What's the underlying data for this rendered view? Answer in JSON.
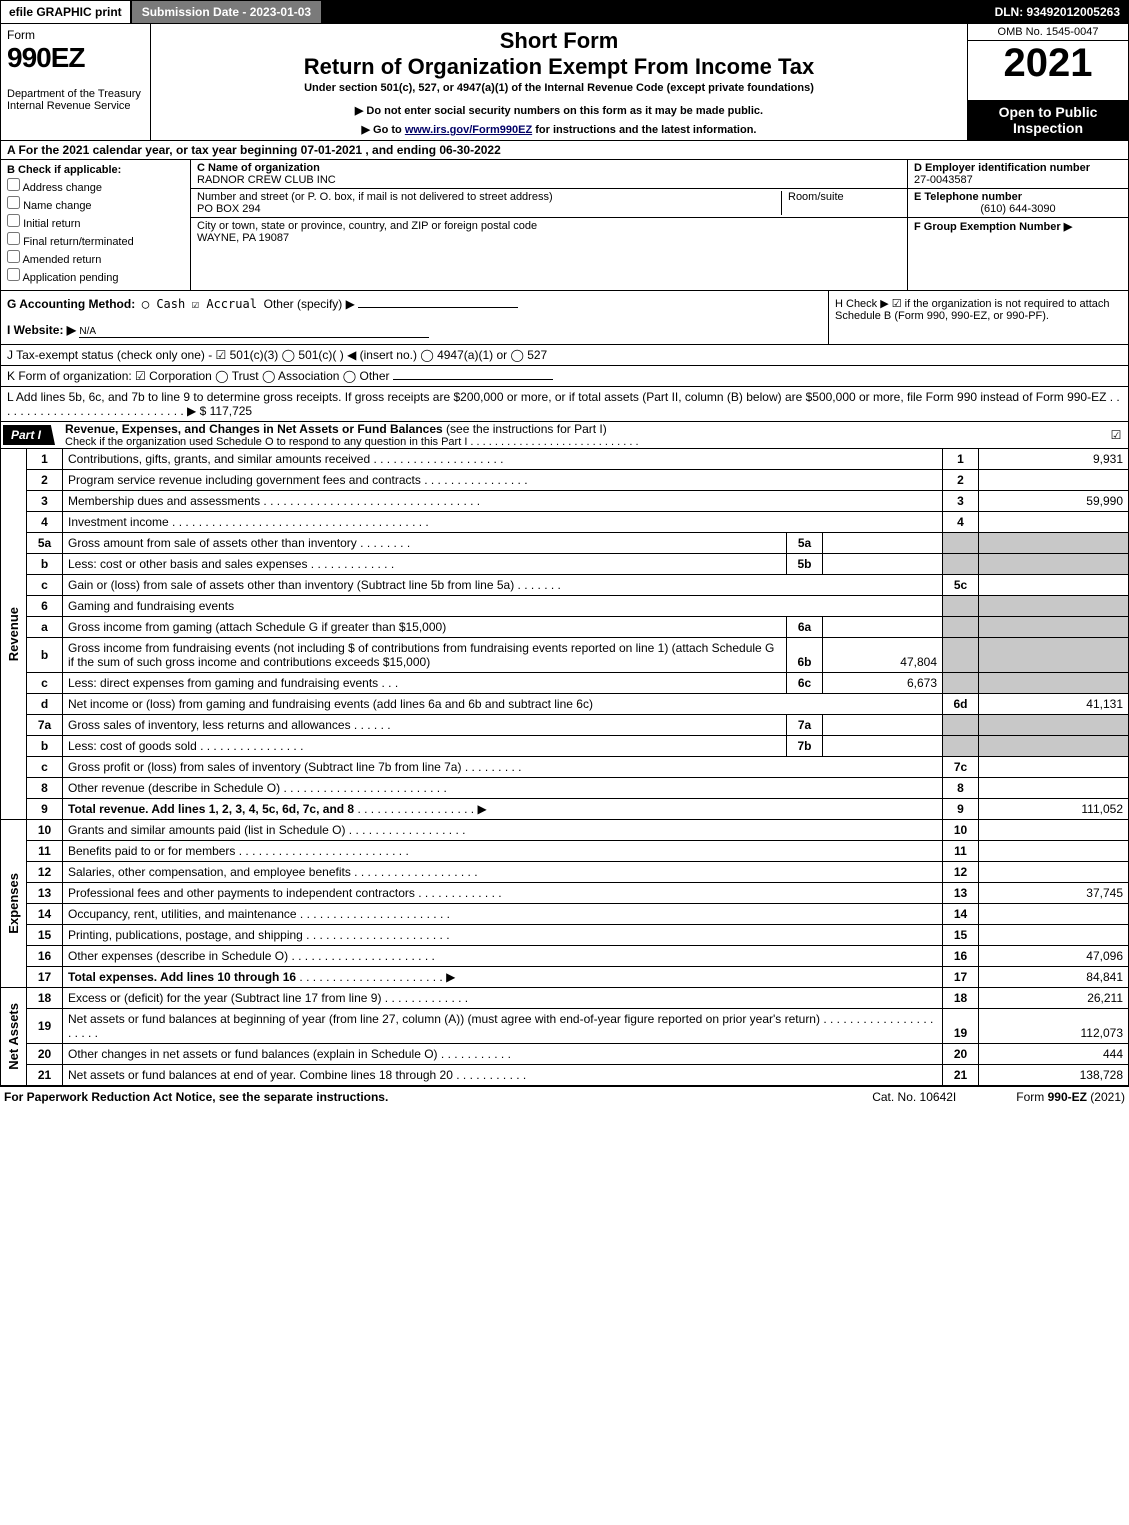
{
  "topbar": {
    "efile": "efile GRAPHIC print",
    "submission": "Submission Date - 2023-01-03",
    "dln": "DLN: 93492012005263"
  },
  "header": {
    "form_word": "Form",
    "form_number": "990EZ",
    "dept": "Department of the Treasury\nInternal Revenue Service",
    "short_form": "Short Form",
    "return_title": "Return of Organization Exempt From Income Tax",
    "under": "Under section 501(c), 527, or 4947(a)(1) of the Internal Revenue Code (except private foundations)",
    "note1": "▶ Do not enter social security numbers on this form as it may be made public.",
    "note2_pre": "▶ Go to ",
    "note2_link": "www.irs.gov/Form990EZ",
    "note2_post": " for instructions and the latest information.",
    "omb": "OMB No. 1545-0047",
    "year": "2021",
    "open": "Open to Public Inspection"
  },
  "lineA": "A  For the 2021 calendar year, or tax year beginning 07-01-2021 , and ending 06-30-2022",
  "boxB": {
    "hdr": "B  Check if applicable:",
    "items": [
      "Address change",
      "Name change",
      "Initial return",
      "Final return/terminated",
      "Amended return",
      "Application pending"
    ]
  },
  "boxC": {
    "name_lbl": "C Name of organization",
    "name": "RADNOR CREW CLUB INC",
    "street_lbl": "Number and street (or P. O. box, if mail is not delivered to street address)",
    "street": "PO BOX 294",
    "room_lbl": "Room/suite",
    "city_lbl": "City or town, state or province, country, and ZIP or foreign postal code",
    "city": "WAYNE, PA  19087"
  },
  "boxD": {
    "ein_lbl": "D Employer identification number",
    "ein": "27-0043587",
    "tel_lbl": "E Telephone number",
    "tel": "(610) 644-3090",
    "grp_lbl": "F Group Exemption Number   ▶"
  },
  "lineG": {
    "lbl": "G Accounting Method:",
    "cash": "Cash",
    "accrual": "Accrual",
    "other": "Other (specify) ▶"
  },
  "lineH": "H  Check ▶ ☑ if the organization is not required to attach Schedule B (Form 990, 990-EZ, or 990-PF).",
  "lineI": {
    "lbl": "I Website: ▶",
    "val": "N/A"
  },
  "lineJ": "J Tax-exempt status (check only one) - ☑ 501(c)(3)  ◯ 501(c)(  ) ◀ (insert no.)  ◯ 4947(a)(1) or  ◯ 527",
  "lineK": "K Form of organization:   ☑ Corporation   ◯ Trust   ◯ Association   ◯ Other",
  "lineL": {
    "text": "L Add lines 5b, 6c, and 7b to line 9 to determine gross receipts. If gross receipts are $200,000 or more, or if total assets (Part II, column (B) below) are $500,000 or more, file Form 990 instead of Form 990-EZ  .  .  .  .  .  .  .  .  .  .  .  .  .  .  .  .  .  .  .  .  .  .  .  .  .  .  .  .  .  ▶",
    "amount": "$ 117,725"
  },
  "part1": {
    "badge": "Part I",
    "title": "Revenue, Expenses, and Changes in Net Assets or Fund Balances",
    "sub": " (see the instructions for Part I)",
    "check_line": "Check if the organization used Schedule O to respond to any question in this Part I .  .  .  .  .  .  .  .  .  .  .  .  .  .  .  .  .  .  .  .  .  .  .  .  .  .  .  ."
  },
  "sections": {
    "revenue_label": "Revenue",
    "expenses_label": "Expenses",
    "netassets_label": "Net Assets"
  },
  "rows": {
    "r1": {
      "ln": "1",
      "desc": "Contributions, gifts, grants, and similar amounts received",
      "num": "1",
      "amt": "9,931"
    },
    "r2": {
      "ln": "2",
      "desc": "Program service revenue including government fees and contracts",
      "num": "2",
      "amt": ""
    },
    "r3": {
      "ln": "3",
      "desc": "Membership dues and assessments",
      "num": "3",
      "amt": "59,990"
    },
    "r4": {
      "ln": "4",
      "desc": "Investment income",
      "num": "4",
      "amt": ""
    },
    "r5a": {
      "ln": "5a",
      "desc": "Gross amount from sale of assets other than inventory",
      "sub": "5a",
      "subamt": ""
    },
    "r5b": {
      "ln": "b",
      "desc": "Less: cost or other basis and sales expenses",
      "sub": "5b",
      "subamt": ""
    },
    "r5c": {
      "ln": "c",
      "desc": "Gain or (loss) from sale of assets other than inventory (Subtract line 5b from line 5a)",
      "num": "5c",
      "amt": ""
    },
    "r6": {
      "ln": "6",
      "desc": "Gaming and fundraising events"
    },
    "r6a": {
      "ln": "a",
      "desc": "Gross income from gaming (attach Schedule G if greater than $15,000)",
      "sub": "6a",
      "subamt": ""
    },
    "r6b": {
      "ln": "b",
      "desc": "Gross income from fundraising events (not including $                      of contributions from fundraising events reported on line 1) (attach Schedule G if the sum of such gross income and contributions exceeds $15,000)",
      "sub": "6b",
      "subamt": "47,804"
    },
    "r6c": {
      "ln": "c",
      "desc": "Less: direct expenses from gaming and fundraising events",
      "sub": "6c",
      "subamt": "6,673"
    },
    "r6d": {
      "ln": "d",
      "desc": "Net income or (loss) from gaming and fundraising events (add lines 6a and 6b and subtract line 6c)",
      "num": "6d",
      "amt": "41,131"
    },
    "r7a": {
      "ln": "7a",
      "desc": "Gross sales of inventory, less returns and allowances",
      "sub": "7a",
      "subamt": ""
    },
    "r7b": {
      "ln": "b",
      "desc": "Less: cost of goods sold",
      "sub": "7b",
      "subamt": ""
    },
    "r7c": {
      "ln": "c",
      "desc": "Gross profit or (loss) from sales of inventory (Subtract line 7b from line 7a)",
      "num": "7c",
      "amt": ""
    },
    "r8": {
      "ln": "8",
      "desc": "Other revenue (describe in Schedule O)",
      "num": "8",
      "amt": ""
    },
    "r9": {
      "ln": "9",
      "desc": "Total revenue. Add lines 1, 2, 3, 4, 5c, 6d, 7c, and 8",
      "num": "9",
      "amt": "111,052"
    },
    "r10": {
      "ln": "10",
      "desc": "Grants and similar amounts paid (list in Schedule O)",
      "num": "10",
      "amt": ""
    },
    "r11": {
      "ln": "11",
      "desc": "Benefits paid to or for members",
      "num": "11",
      "amt": ""
    },
    "r12": {
      "ln": "12",
      "desc": "Salaries, other compensation, and employee benefits",
      "num": "12",
      "amt": ""
    },
    "r13": {
      "ln": "13",
      "desc": "Professional fees and other payments to independent contractors",
      "num": "13",
      "amt": "37,745"
    },
    "r14": {
      "ln": "14",
      "desc": "Occupancy, rent, utilities, and maintenance",
      "num": "14",
      "amt": ""
    },
    "r15": {
      "ln": "15",
      "desc": "Printing, publications, postage, and shipping",
      "num": "15",
      "amt": ""
    },
    "r16": {
      "ln": "16",
      "desc": "Other expenses (describe in Schedule O)",
      "num": "16",
      "amt": "47,096"
    },
    "r17": {
      "ln": "17",
      "desc": "Total expenses. Add lines 10 through 16",
      "num": "17",
      "amt": "84,841"
    },
    "r18": {
      "ln": "18",
      "desc": "Excess or (deficit) for the year (Subtract line 17 from line 9)",
      "num": "18",
      "amt": "26,211"
    },
    "r19": {
      "ln": "19",
      "desc": "Net assets or fund balances at beginning of year (from line 27, column (A)) (must agree with end-of-year figure reported on prior year's return)",
      "num": "19",
      "amt": "112,073"
    },
    "r20": {
      "ln": "20",
      "desc": "Other changes in net assets or fund balances (explain in Schedule O)",
      "num": "20",
      "amt": "444"
    },
    "r21": {
      "ln": "21",
      "desc": "Net assets or fund balances at end of year. Combine lines 18 through 20",
      "num": "21",
      "amt": "138,728"
    }
  },
  "footer": {
    "left": "For Paperwork Reduction Act Notice, see the separate instructions.",
    "center": "Cat. No. 10642I",
    "right_pre": "Form ",
    "right_bold": "990-EZ",
    "right_post": " (2021)"
  },
  "colors": {
    "black": "#000000",
    "grey": "#c8c8c8",
    "darkgrey": "#7a7a7a"
  }
}
